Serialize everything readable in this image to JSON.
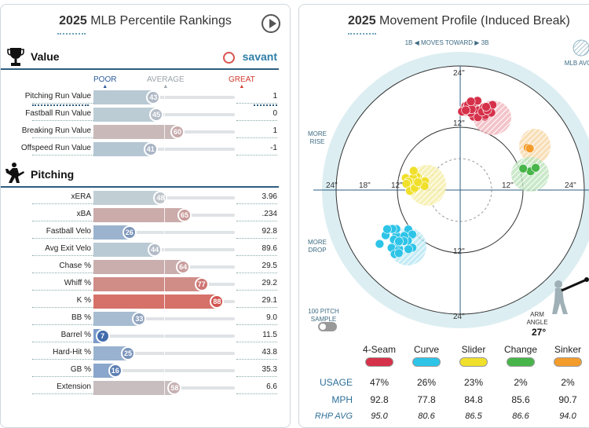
{
  "left": {
    "year": "2025",
    "title": "MLB Percentile Rankings",
    "savant": "savant",
    "scale": {
      "poor": "POOR",
      "average": "AVERAGE",
      "great": "GREAT"
    },
    "value_section": {
      "label": "Value",
      "rows": [
        {
          "metric": "Pitching Run Value",
          "pct": 43,
          "value": "1"
        },
        {
          "metric": "Fastball Run Value",
          "pct": 45,
          "value": "0"
        },
        {
          "metric": "Breaking Run Value",
          "pct": 60,
          "value": "1"
        },
        {
          "metric": "Offspeed Run Value",
          "pct": 41,
          "value": "-1"
        }
      ]
    },
    "pitching_section": {
      "label": "Pitching",
      "rows": [
        {
          "metric": "xERA",
          "pct": 48,
          "value": "3.96"
        },
        {
          "metric": "xBA",
          "pct": 65,
          "value": ".234"
        },
        {
          "metric": "Fastball Velo",
          "pct": 26,
          "value": "92.8"
        },
        {
          "metric": "Avg Exit Velo",
          "pct": 44,
          "value": "89.6"
        },
        {
          "metric": "Chase %",
          "pct": 64,
          "value": "29.5"
        },
        {
          "metric": "Whiff %",
          "pct": 77,
          "value": "29.2"
        },
        {
          "metric": "K %",
          "pct": 88,
          "value": "29.1"
        },
        {
          "metric": "BB %",
          "pct": 33,
          "value": "9.0"
        },
        {
          "metric": "Barrel %",
          "pct": 7,
          "value": "11.5"
        },
        {
          "metric": "Hard-Hit %",
          "pct": 25,
          "value": "43.8"
        },
        {
          "metric": "GB %",
          "pct": 16,
          "value": "35.3"
        },
        {
          "metric": "Extension",
          "pct": 58,
          "value": "6.6"
        }
      ]
    }
  },
  "right": {
    "year": "2025",
    "title": "Movement Profile (Induced Break)",
    "moves_toward": "1B ◀  MOVES TOWARD  ▶ 3B",
    "mlb_avg": "MLB AVG",
    "more_rise": "MORE\nRISE",
    "more_drop": "MORE\nDROP",
    "sample": "100 PITCH\nSAMPLE",
    "arm_angle_label": "ARM\nANGLE",
    "arm_angle": "27°",
    "ring_labels": {
      "top24": "24\"",
      "top12": "12\"",
      "bottom12": "12\"",
      "bottom24": "24\"",
      "left24": "24\"",
      "left18": "18\"",
      "left12": "12\"",
      "right12": "12\"",
      "right24": "24\""
    },
    "pitches": [
      {
        "name": "4-Seam",
        "color": "#d6314a",
        "usage": "47%",
        "mph": "92.8",
        "rhp_avg": "95.0"
      },
      {
        "name": "Curve",
        "color": "#2ec4e8",
        "usage": "26%",
        "mph": "77.8",
        "rhp_avg": "80.6"
      },
      {
        "name": "Slider",
        "color": "#f0e02c",
        "usage": "23%",
        "mph": "84.8",
        "rhp_avg": "86.5"
      },
      {
        "name": "Change",
        "color": "#47b54a",
        "usage": "2%",
        "mph": "85.6",
        "rhp_avg": "86.6"
      },
      {
        "name": "Sinker",
        "color": "#f39c2c",
        "usage": "2%",
        "mph": "90.7",
        "rhp_avg": "94.0"
      }
    ],
    "row_labels": {
      "usage": "USAGE",
      "mph": "MPH",
      "rhp_avg": "RHP AVG"
    }
  }
}
